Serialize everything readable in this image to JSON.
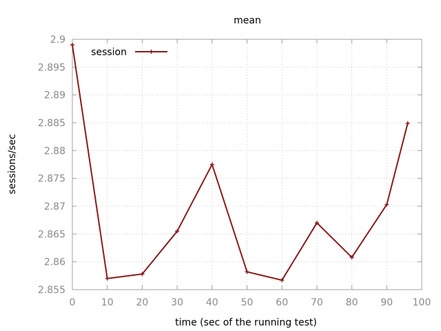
{
  "chart_data": {
    "type": "line",
    "title": "mean",
    "xlabel": "time (sec of the running test)",
    "ylabel": "sessions/sec",
    "xlim": [
      0,
      100
    ],
    "ylim": [
      2.855,
      2.9
    ],
    "xticks": [
      "0",
      "10",
      "20",
      "30",
      "40",
      "50",
      "60",
      "70",
      "80",
      "90",
      "100"
    ],
    "yticks": [
      "2.855",
      "2.86",
      "2.865",
      "2.87",
      "2.875",
      "2.88",
      "2.885",
      "2.89",
      "2.895",
      "2.9"
    ],
    "grid": true,
    "legend_position": "top-left",
    "series": [
      {
        "name": "session",
        "color": "#8b1a1a",
        "x": [
          0,
          10,
          20,
          30,
          40,
          50,
          60,
          70,
          80,
          90,
          96
        ],
        "y": [
          2.899,
          2.857,
          2.8578,
          2.8655,
          2.8775,
          2.8582,
          2.8567,
          2.867,
          2.8608,
          2.8703,
          2.8849
        ]
      }
    ]
  }
}
